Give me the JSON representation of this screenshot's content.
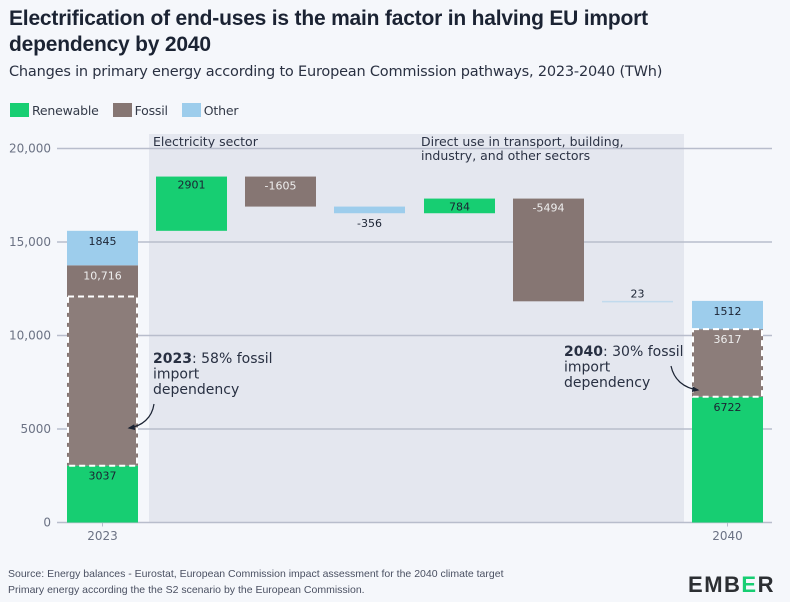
{
  "header": {
    "title": "Electrification of end-uses is the main factor in halving EU import dependency by 2040",
    "subtitle": "Changes in primary energy according to European Commission pathways, 2023-2040 (TWh)"
  },
  "colors": {
    "renewable": "#17ce72",
    "fossil": "#867673",
    "other": "#9dcdec",
    "band": "#e4e7ef",
    "grid": "#b8bdcc",
    "background": "#f5f7fb"
  },
  "legend": [
    {
      "key": "renewable",
      "label": "Renewable"
    },
    {
      "key": "fossil",
      "label": "Fossil"
    },
    {
      "key": "other",
      "label": "Other"
    }
  ],
  "chart_data": {
    "type": "bar",
    "subtype": "waterfall-stacked",
    "title": "Electrification of end-uses is the main factor in halving EU import dependency by 2040",
    "subtitle": "Changes in primary energy according to European Commission pathways, 2023-2040 (TWh)",
    "ylabel": "TWh",
    "ylim": [
      0,
      20000
    ],
    "yticks": [
      0,
      5000,
      10000,
      15000,
      20000
    ],
    "ytick_labels": [
      "0",
      "5000",
      "10,000",
      "15,000",
      "20,000"
    ],
    "grid": true,
    "legend_position": "top-left",
    "categories": [
      "2023",
      "2040"
    ],
    "stacks": [
      {
        "year": "2023",
        "renewable": 3037,
        "fossil": 10716,
        "other": 1845,
        "labels": {
          "renewable": "3037",
          "fossil": "10,716",
          "other": "1845"
        },
        "import_dependency_pct": 58
      },
      {
        "year": "2040",
        "renewable": 6722,
        "fossil": 3617,
        "other": 1512,
        "labels": {
          "renewable": "6722",
          "fossil": "3617",
          "other": "1512"
        },
        "import_dependency_pct": 30
      }
    ],
    "bands": [
      {
        "label": "Electricity sector",
        "changes": [
          {
            "type": "renewable",
            "value": 2901,
            "label": "2901"
          },
          {
            "type": "fossil",
            "value": -1605,
            "label": "-1605"
          },
          {
            "type": "other",
            "value": -356,
            "label": "-356"
          }
        ]
      },
      {
        "label": "Direct use in transport, building, industry, and other sectors",
        "label_lines": [
          "Direct use in transport, building,",
          "industry, and other sectors"
        ],
        "changes": [
          {
            "type": "renewable",
            "value": 784,
            "label": "784"
          },
          {
            "type": "fossil",
            "value": -5494,
            "label": "-5494"
          },
          {
            "type": "other",
            "value": 23,
            "label": "23"
          }
        ]
      }
    ],
    "annotations": [
      {
        "bold": "2023",
        "text_lines": [
          ": 58% fossil",
          "import",
          "dependency"
        ]
      },
      {
        "bold": "2040",
        "text_lines": [
          ": 30% fossil",
          "import",
          "dependency"
        ]
      }
    ]
  },
  "footer": {
    "source": "Source: Energy balances - Eurostat, European Commission impact assessment for the 2040 climate target",
    "note": "Primary energy according the the S2 scenario by the European Commission."
  },
  "logo": {
    "pre": "EMB",
    "accent": "E",
    "post": "R"
  }
}
